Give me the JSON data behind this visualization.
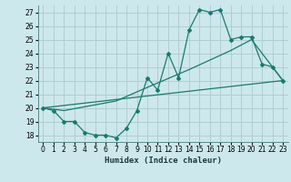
{
  "xlabel": "Humidex (Indice chaleur)",
  "bg_color": "#cde8ec",
  "grid_color": "#b0cdd2",
  "line_color": "#1a7a6e",
  "xlim": [
    -0.5,
    23.5
  ],
  "ylim": [
    17.5,
    27.5
  ],
  "xticks": [
    0,
    1,
    2,
    3,
    4,
    5,
    6,
    7,
    8,
    9,
    10,
    11,
    12,
    13,
    14,
    15,
    16,
    17,
    18,
    19,
    20,
    21,
    22,
    23
  ],
  "yticks": [
    18,
    19,
    20,
    21,
    22,
    23,
    24,
    25,
    26,
    27
  ],
  "series1": [
    [
      0,
      20.0
    ],
    [
      1,
      19.8
    ],
    [
      2,
      19.0
    ],
    [
      3,
      19.0
    ],
    [
      4,
      18.2
    ],
    [
      5,
      18.0
    ],
    [
      6,
      18.0
    ],
    [
      7,
      17.8
    ],
    [
      8,
      18.5
    ],
    [
      9,
      19.8
    ],
    [
      10,
      22.2
    ],
    [
      11,
      21.3
    ],
    [
      12,
      24.0
    ],
    [
      13,
      22.2
    ],
    [
      14,
      25.7
    ],
    [
      15,
      27.2
    ],
    [
      16,
      27.0
    ],
    [
      17,
      27.2
    ],
    [
      18,
      25.0
    ],
    [
      19,
      25.2
    ],
    [
      20,
      25.2
    ],
    [
      21,
      23.2
    ],
    [
      22,
      23.0
    ],
    [
      23,
      22.0
    ]
  ],
  "series2": [
    [
      0,
      20.0
    ],
    [
      23,
      22.0
    ]
  ],
  "series3": [
    [
      0,
      20.0
    ],
    [
      2,
      19.8
    ],
    [
      7,
      20.5
    ],
    [
      10,
      21.5
    ],
    [
      14,
      22.8
    ],
    [
      18,
      24.2
    ],
    [
      20,
      25.0
    ],
    [
      23,
      22.0
    ]
  ]
}
